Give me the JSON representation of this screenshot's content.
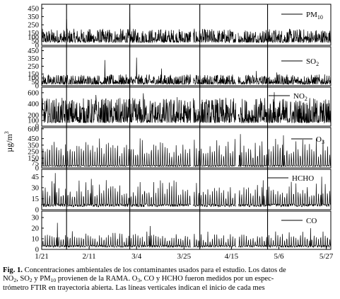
{
  "chart_data": {
    "type": "line",
    "ylabel": "µg/m³",
    "x_tick_labels": [
      "1/21",
      "2/11",
      "3/4",
      "3/25",
      "4/15",
      "5/6",
      "5/27"
    ],
    "x_tick_days": [
      0,
      21,
      42,
      63,
      84,
      105,
      126
    ],
    "x_range_days": [
      0,
      128
    ],
    "x_start_date": "1/21",
    "month_start_lines": [
      "2/1",
      "3/1",
      "4/1",
      "5/1"
    ],
    "month_start_days": [
      11,
      39,
      70,
      100
    ],
    "gap_days": [
      [
        66,
        67
      ],
      [
        86,
        87
      ]
    ],
    "panels": [
      {
        "name": "PM10",
        "ylim": [
          0,
          500
        ],
        "yticks": [
          0,
          50,
          100,
          150,
          250,
          350,
          450
        ],
        "yticklabels": [
          "0",
          "50",
          "100",
          "150",
          "250",
          "350",
          "450"
        ],
        "baseline": 35,
        "typical": 120,
        "extreme": [
          [
            11,
            320
          ],
          [
            39,
            400
          ],
          [
            30,
            190
          ],
          [
            70,
            160
          ],
          [
            100,
            200
          ]
        ],
        "diurnal": false
      },
      {
        "name": "SO2",
        "ylim": [
          0,
          500
        ],
        "yticks": [
          0,
          50,
          100,
          150,
          250,
          350,
          450
        ],
        "yticklabels": [
          "0",
          "50",
          "100",
          "150",
          "250",
          "350",
          "450"
        ],
        "baseline": 20,
        "typical": 90,
        "extreme": [
          [
            28,
            330
          ],
          [
            42,
            360
          ],
          [
            53,
            220
          ],
          [
            95,
            190
          ],
          [
            104,
            170
          ]
        ],
        "diurnal": false
      },
      {
        "name": "NO2",
        "ylim": [
          0,
          700
        ],
        "yticks": [
          0,
          100,
          200,
          400,
          600
        ],
        "yticklabels": [
          "0",
          "100",
          "200",
          "400",
          "600"
        ],
        "baseline": 60,
        "typical": 320,
        "extreme": [
          [
            24,
            560
          ],
          [
            45,
            590
          ],
          [
            60,
            520
          ],
          [
            85,
            500
          ],
          [
            103,
            610
          ]
        ],
        "diurnal": false
      },
      {
        "name": "O3",
        "ylim": [
          0,
          620
        ],
        "yticks": [
          0,
          75,
          150,
          250,
          350,
          450,
          600
        ],
        "yticklabels": [
          "0",
          "75",
          "150",
          "250",
          "350",
          "450",
          "600"
        ],
        "baseline": 20,
        "typical": 380,
        "extreme": [
          [
            88,
            520
          ],
          [
            107,
            500
          ]
        ],
        "diurnal": true
      },
      {
        "name": "HCHO",
        "ylim": [
          0,
          55
        ],
        "yticks": [
          0,
          15,
          30,
          45
        ],
        "yticklabels": [
          "0",
          "15",
          "30",
          "45"
        ],
        "baseline": 4,
        "typical": 30,
        "extreme": [
          [
            6,
            50
          ],
          [
            22,
            42
          ],
          [
            98,
            40
          ],
          [
            124,
            45
          ]
        ],
        "diurnal": true
      },
      {
        "name": "CO",
        "ylim": [
          0,
          36
        ],
        "yticks": [
          0,
          10,
          20,
          30
        ],
        "yticklabels": [
          "0",
          "10",
          "20",
          "30"
        ],
        "baseline": 2,
        "typical": 12,
        "extreme": [
          [
            7,
            25
          ],
          [
            48,
            22
          ],
          [
            119,
            20
          ]
        ],
        "diurnal": true
      }
    ]
  },
  "panel_labels": [
    "PM",
    "SO",
    "NO",
    "O",
    "HCHO",
    "CO"
  ],
  "panel_subs": [
    "10",
    "2",
    "2",
    "3",
    "",
    ""
  ],
  "ylabel_main": "µg/m",
  "ylabel_sup": "3",
  "caption": {
    "fig_label": "Fig. 1.",
    "line1": "Concentraciones ambientales de los contaminantes usados para el estudio. Los datos de",
    "line2_a": "NO",
    "line2_b": ", SO",
    "line2_c": " y PM",
    "line2_d": " provienen de la RAMA. O",
    "line2_e": ", CO y HCHO fueron medidos por un espec-",
    "sub_2": "2",
    "sub_10": "10",
    "sub_3": "3",
    "line3": "trómetro FTIR en trayectoria abierta. Las líneas verticales indican el inicio de cada mes"
  }
}
